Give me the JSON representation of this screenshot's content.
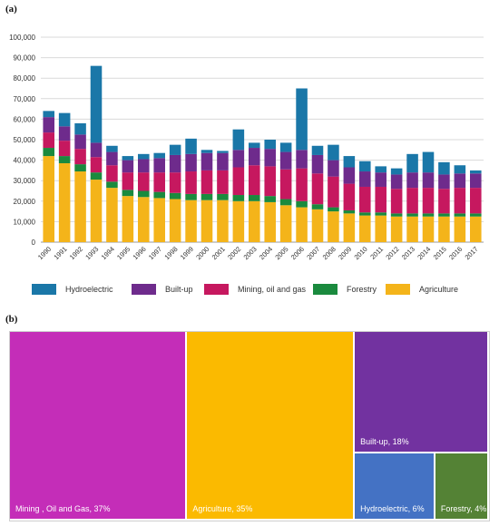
{
  "panels": {
    "a": "(a)",
    "b": "(b)"
  },
  "colors": {
    "Hydroelectric": "#1a77a8",
    "Built-up": "#6e2b8c",
    "Mining, oil and gas": "#c6185f",
    "Forestry": "#1a8a3e",
    "Agriculture": "#f4b41a",
    "grid": "#d9d9d9",
    "axis": "#999999"
  },
  "chart_data": [
    {
      "type": "bar",
      "stacked": true,
      "title": "",
      "xlabel": "",
      "ylabel": "",
      "ylim": [
        0,
        100000
      ],
      "yticks": [
        "0",
        "10,000",
        "20,000",
        "30,000",
        "40,000",
        "50,000",
        "60,000",
        "70,000",
        "80,000",
        "90,000",
        "100,000"
      ],
      "grid": true,
      "legend": "bottom",
      "categories": [
        "1990",
        "1991",
        "1992",
        "1993",
        "1994",
        "1995",
        "1996",
        "1997",
        "1998",
        "1999",
        "2000",
        "2001",
        "2002",
        "2003",
        "2004",
        "2005",
        "2006",
        "2007",
        "2008",
        "2009",
        "2010",
        "2011",
        "2012",
        "2013",
        "2014",
        "2015",
        "2016",
        "2017"
      ],
      "series": [
        {
          "name": "Agriculture",
          "values": [
            42000,
            38500,
            34500,
            30500,
            26500,
            22500,
            22000,
            21500,
            21000,
            20500,
            20500,
            20500,
            20000,
            20000,
            19500,
            18000,
            17000,
            16000,
            15000,
            14000,
            13000,
            13000,
            12500,
            12500,
            12500,
            12500,
            12500,
            12500
          ]
        },
        {
          "name": "Forestry",
          "values": [
            4000,
            3500,
            3500,
            3500,
            3000,
            3000,
            3000,
            3000,
            3000,
            3000,
            3000,
            3000,
            3000,
            3000,
            3000,
            3000,
            3000,
            2500,
            2000,
            1500,
            1500,
            1500,
            1500,
            1500,
            1500,
            1500,
            1500,
            1500
          ]
        },
        {
          "name": "Mining, oil and gas",
          "values": [
            7500,
            7500,
            7500,
            7500,
            8000,
            8500,
            9000,
            9500,
            10000,
            11000,
            11500,
            11500,
            13500,
            14500,
            14500,
            14500,
            16000,
            15000,
            15000,
            13000,
            12500,
            12500,
            12000,
            12500,
            12500,
            12000,
            12500,
            12500
          ]
        },
        {
          "name": "Built-up",
          "values": [
            7500,
            7000,
            7000,
            7000,
            6500,
            6000,
            6500,
            7000,
            8500,
            8500,
            8500,
            8500,
            8500,
            8500,
            8500,
            8500,
            9000,
            9000,
            8000,
            8000,
            7500,
            7000,
            7000,
            7500,
            7500,
            7000,
            7000,
            7000
          ]
        },
        {
          "name": "Hydroelectric",
          "values": [
            3000,
            6500,
            5500,
            37500,
            3000,
            2000,
            2500,
            2500,
            5000,
            7500,
            1500,
            1000,
            10000,
            2500,
            4500,
            4500,
            30000,
            4500,
            7500,
            5500,
            5000,
            3000,
            3000,
            9000,
            10000,
            6000,
            4000,
            1500
          ]
        }
      ]
    },
    {
      "type": "treemap",
      "title": "",
      "items": [
        {
          "label": "Mining , Oil and Gas, 37%",
          "value": 37,
          "color": "#c42db8"
        },
        {
          "label": "Agriculture, 35%",
          "value": 35,
          "color": "#fbba00"
        },
        {
          "label": "Built-up, 18%",
          "value": 18,
          "color": "#7232a0"
        },
        {
          "label": "Hydroelectric, 6%",
          "value": 6,
          "color": "#4472c4"
        },
        {
          "label": "Forestry, 4%",
          "value": 4,
          "color": "#548235"
        }
      ]
    }
  ],
  "legend_items": [
    "Hydroelectric",
    "Built-up",
    "Mining, oil and gas",
    "Forestry",
    "Agriculture"
  ]
}
